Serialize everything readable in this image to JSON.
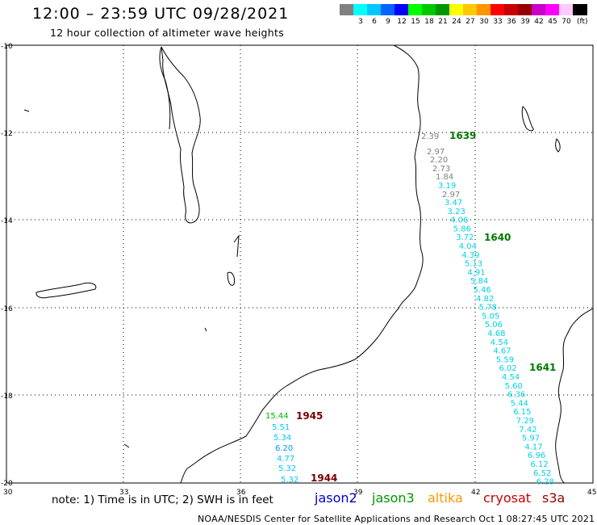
{
  "header": {
    "title": "12:00 – 23:59 UTC 09/28/2021",
    "subtitle": "12 hour collection of altimeter wave heights"
  },
  "color_scale": {
    "unit_label": "(ft)",
    "swatches": [
      {
        "color": "#808080",
        "label": ""
      },
      {
        "color": "#00ffff",
        "label": "3"
      },
      {
        "color": "#00c8ff",
        "label": "6"
      },
      {
        "color": "#0064ff",
        "label": "9"
      },
      {
        "color": "#0000ff",
        "label": "12"
      },
      {
        "color": "#00ff00",
        "label": "15"
      },
      {
        "color": "#00c800",
        "label": "18"
      },
      {
        "color": "#009600",
        "label": "21"
      },
      {
        "color": "#ffff00",
        "label": "24"
      },
      {
        "color": "#ffc800",
        "label": "27"
      },
      {
        "color": "#ff9600",
        "label": "30"
      },
      {
        "color": "#ff0000",
        "label": "33"
      },
      {
        "color": "#c80000",
        "label": "36"
      },
      {
        "color": "#960000",
        "label": "39"
      },
      {
        "color": "#c800c8",
        "label": "42"
      },
      {
        "color": "#ff00ff",
        "label": "45"
      },
      {
        "color": "#ffc8ff",
        "label": "70"
      },
      {
        "color": "#000000",
        "label": ""
      }
    ]
  },
  "axes": {
    "lon_ticks": [
      "30",
      "33",
      "36",
      "39",
      "42",
      "45"
    ],
    "lat_ticks": [
      "-10",
      "-12",
      "-14",
      "-16",
      "-18",
      "-20"
    ]
  },
  "track_east": {
    "times": [
      {
        "label": "1639",
        "color": "#007800"
      },
      {
        "label": "1640",
        "color": "#007800"
      },
      {
        "label": "1641",
        "color": "#007800"
      }
    ],
    "gray_points": [
      "2.39",
      "2.97",
      "2.20",
      "2.73",
      "1.84"
    ],
    "gray_points_b": [
      "2.97"
    ],
    "cyan_points_a": [
      "3.19"
    ],
    "cyan_points_b": [
      "3.47",
      "3.23",
      "4.06",
      "5.86",
      "3.72",
      "4.04",
      "4.39",
      "5.13",
      "4.91",
      "5.84",
      "5.46",
      "4.82",
      "5.78",
      "5.05",
      "5.06",
      "4.68",
      "4.54",
      "4.67",
      "5.59",
      "6.02",
      "4.54",
      "5.60",
      "6.36",
      "5.44",
      "6.15",
      "7.29",
      "7.42",
      "5.97",
      "4.17",
      "6.96",
      "6.12",
      "6.52",
      "6.28"
    ]
  },
  "track_west": {
    "times": [
      {
        "label": "1945",
        "color": "#780000"
      },
      {
        "label": "1944",
        "color": "#780000"
      }
    ],
    "points": [
      {
        "value": "15.44",
        "color": "#00b400"
      },
      {
        "value": "5.51",
        "color": "#00c8ff"
      },
      {
        "value": "5.34",
        "color": "#00c8ff"
      },
      {
        "value": "6.20",
        "color": "#0096ff"
      },
      {
        "value": "4.77",
        "color": "#00c8ff"
      },
      {
        "value": "5.32",
        "color": "#00c8ff"
      },
      {
        "value": "5.32",
        "color": "#00c8ff"
      }
    ]
  },
  "footer": {
    "note": "note: 1) Time is in UTC; 2) SWH is in feet",
    "satellites": [
      {
        "name": "jason2",
        "color": "#0000c8"
      },
      {
        "name": "jason3",
        "color": "#009600"
      },
      {
        "name": "altika",
        "color": "#ff9600"
      },
      {
        "name": "cryosat",
        "color": "#c80000"
      },
      {
        "name": "s3a",
        "color": "#960000"
      }
    ],
    "credit": "NOAA/NESDIS Center for Satellite Applications and Research     Oct  1 08:27:45 UTC 2021"
  }
}
